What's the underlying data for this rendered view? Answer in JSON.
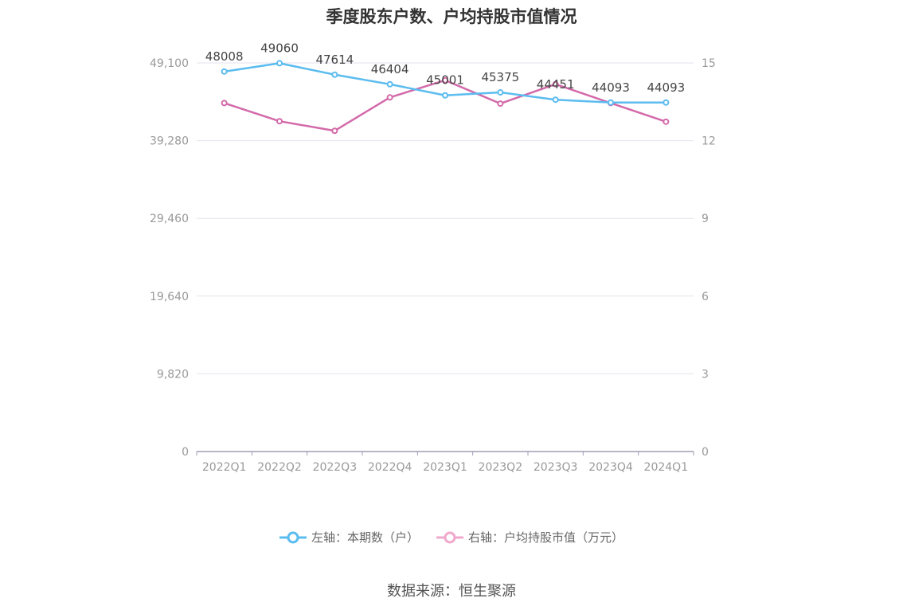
{
  "title": "季度股东户数、户均持股市值情况",
  "source": "数据来源：恒生聚源",
  "colors": {
    "left": "#5bbcef",
    "right": "#d36aaa",
    "grid": "#e3e3ee",
    "axis": "#9e9eb5",
    "tick": "#999999",
    "label": "#444444"
  },
  "legend": [
    {
      "label": "左轴：本期数（户）",
      "color": "#5bbcef"
    },
    {
      "label": "右轴：户均持股市值（万元）",
      "color": "#f0a9cc"
    }
  ],
  "chart_data": {
    "type": "line",
    "categories": [
      "2022Q1",
      "2022Q2",
      "2022Q3",
      "2022Q4",
      "2023Q1",
      "2023Q2",
      "2023Q3",
      "2023Q4",
      "2024Q1"
    ],
    "y_left": {
      "ticks": [
        "0",
        "9,820",
        "19,640",
        "29,460",
        "39,280",
        "49,100"
      ],
      "range": [
        0,
        49100
      ]
    },
    "y_right": {
      "ticks": [
        "0",
        "3",
        "6",
        "9",
        "12",
        "15"
      ],
      "range": [
        0,
        15
      ]
    },
    "series": [
      {
        "name": "左轴：本期数（户）",
        "axis": "left",
        "values": [
          48008,
          49060,
          47614,
          46404,
          45001,
          45375,
          44451,
          44093,
          44093
        ],
        "labels": [
          "48008",
          "49060",
          "47614",
          "46404",
          "45001",
          "45375",
          "44451",
          "44093",
          "44093"
        ]
      },
      {
        "name": "右轴：户均持股市值（万元）",
        "axis": "right",
        "values": [
          13.45,
          12.75,
          12.38,
          13.67,
          14.33,
          13.43,
          14.18,
          13.45,
          12.73
        ]
      }
    ]
  }
}
